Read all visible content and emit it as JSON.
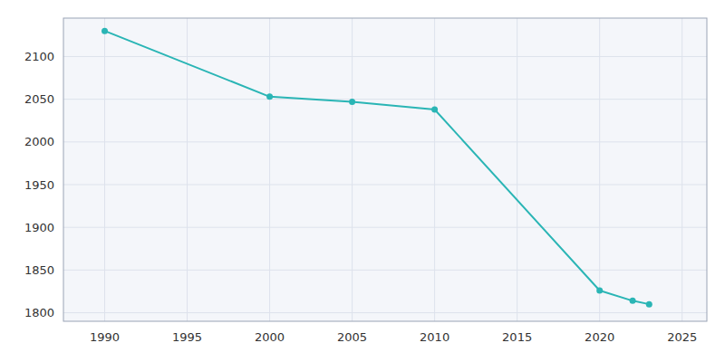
{
  "chart_data": {
    "type": "line",
    "x": [
      1990,
      2000,
      2005,
      2010,
      2020,
      2022,
      2023
    ],
    "values": [
      2130,
      2053,
      2047,
      2038,
      1826,
      1814,
      1810
    ],
    "color": "#2ab5b5",
    "marker": "circle",
    "xlim": [
      1987.5,
      2026.5
    ],
    "ylim": [
      1790,
      2145
    ],
    "xticks": [
      1990,
      1995,
      2000,
      2005,
      2010,
      2015,
      2020,
      2025
    ],
    "yticks": [
      1800,
      1850,
      1900,
      1950,
      2000,
      2050,
      2100
    ],
    "grid": true
  }
}
